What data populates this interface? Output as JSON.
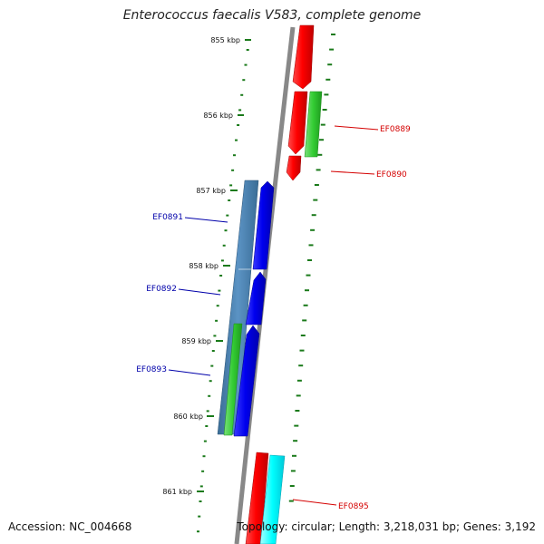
{
  "title": "Enterococcus faecalis V583, complete genome",
  "footer": {
    "accession": "Accession: NC_004668",
    "summary": "Topology: circular; Length: 3,218,031 bp; Genes: 3,192"
  },
  "ruler": {
    "labels": [
      "855 kbp",
      "856 kbp",
      "857 kbp",
      "858 kbp",
      "859 kbp",
      "860 kbp",
      "861 kbp"
    ],
    "tick_color": "#1a7a1a"
  },
  "genes": [
    {
      "label": "EF0889",
      "strand": "forward",
      "color": "#d40000"
    },
    {
      "label": "EF0890",
      "strand": "forward",
      "color": "#d40000"
    },
    {
      "label": "EF0891",
      "strand": "reverse",
      "color": "#0000aa"
    },
    {
      "label": "EF0892",
      "strand": "reverse",
      "color": "#0000aa"
    },
    {
      "label": "EF0893",
      "strand": "reverse",
      "color": "#0000aa"
    },
    {
      "label": "EF0895",
      "strand": "forward",
      "color": "#d40000"
    }
  ],
  "colors": {
    "backbone": "#888888",
    "cds_forward": "#ff0000",
    "cds_reverse": "#0000ee",
    "feature_green": "#33cc33",
    "feature_steelblue": "#4682b4",
    "feature_cyan": "#00ffff"
  }
}
